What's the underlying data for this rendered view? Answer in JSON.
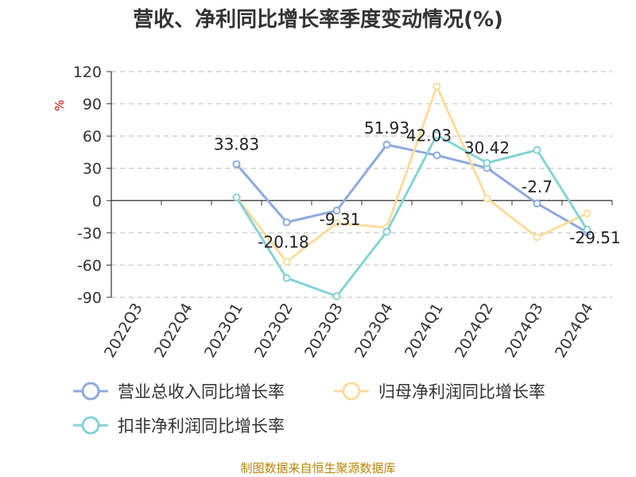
{
  "chart_data": {
    "type": "line",
    "title": "营收、净利同比增长率季度变动情况(%)",
    "ylabel": "%",
    "ylim": [
      -90,
      120
    ],
    "yticks": [
      120,
      90,
      60,
      30,
      0,
      -30,
      -60,
      -90
    ],
    "categories": [
      "2022Q3",
      "2022Q4",
      "2023Q1",
      "2023Q2",
      "2023Q3",
      "2023Q4",
      "2024Q1",
      "2024Q2",
      "2024Q3",
      "2024Q4"
    ],
    "grid": true,
    "legend_position": "bottom",
    "series": [
      {
        "name": "营业总收入同比增长率",
        "color": "#8eaadb",
        "values": [
          null,
          null,
          33.83,
          -20.18,
          -9.31,
          51.93,
          42.03,
          30.42,
          -2.7,
          -29.51
        ],
        "labels": [
          "",
          "",
          "33.83",
          "-20.18",
          "-9.31",
          "51.93",
          "42.03",
          "30.42",
          "-2.7",
          "-29.51"
        ]
      },
      {
        "name": "归母净利润同比增长率",
        "color": "#fbdc9c",
        "values": [
          null,
          null,
          3,
          -57,
          -21,
          -25,
          106,
          2,
          -34,
          -12
        ]
      },
      {
        "name": "扣非净利润同比增长率",
        "color": "#86d2d6",
        "values": [
          null,
          null,
          3,
          -72,
          -89,
          -29,
          61,
          35,
          47,
          -27
        ]
      }
    ]
  },
  "source": "制图数据来自恒生聚源数据库"
}
